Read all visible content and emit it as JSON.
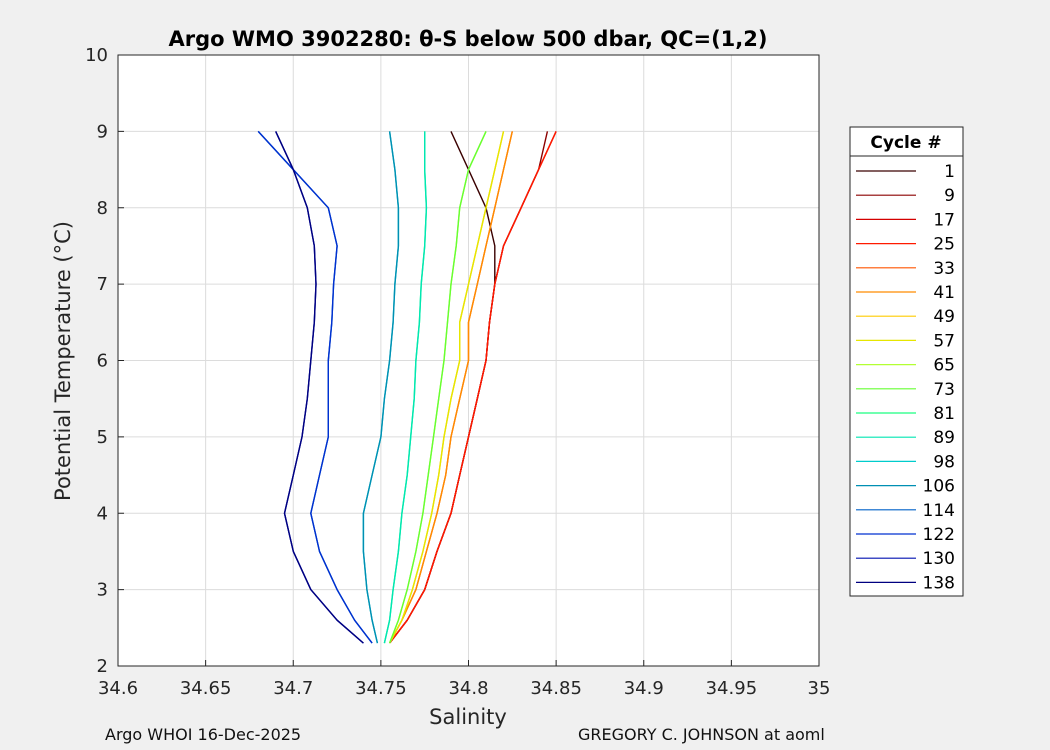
{
  "chart_data": {
    "type": "line",
    "title": "Argo WMO 3902280: θ-S below 500 dbar,  QC=(1,2)",
    "xlabel": "Salinity",
    "ylabel": "Potential Temperature (°C)",
    "xlim": [
      34.6,
      35.0
    ],
    "ylim": [
      2,
      10
    ],
    "xticks": [
      "34.6",
      "34.65",
      "34.7",
      "34.75",
      "34.8",
      "34.85",
      "34.9",
      "34.95",
      "35"
    ],
    "yticks": [
      "2",
      "3",
      "4",
      "5",
      "6",
      "7",
      "8",
      "9",
      "10"
    ],
    "grid": true,
    "legend_title": "Cycle #",
    "legend_position": "right-outside",
    "cycles": [
      1,
      9,
      17,
      25,
      33,
      41,
      49,
      57,
      65,
      73,
      81,
      89,
      98,
      106,
      114,
      122,
      130,
      138
    ],
    "colors": [
      "#3a0000",
      "#8b0000",
      "#d40000",
      "#ff1a00",
      "#ff5500",
      "#ff8c00",
      "#ffcc00",
      "#e6e600",
      "#b3ff33",
      "#66ff33",
      "#1aff80",
      "#00e6b3",
      "#00cccc",
      "#008fb3",
      "#0060c8",
      "#0030d0",
      "#0010b0",
      "#000080"
    ],
    "theta": [
      2.3,
      2.6,
      3.0,
      3.5,
      4.0,
      4.5,
      5.0,
      5.5,
      6.0,
      6.5,
      7.0,
      7.5,
      8.0,
      8.5,
      9.0
    ],
    "series": [
      {
        "name": "1",
        "salinity": [
          34.755,
          34.765,
          34.775,
          34.782,
          34.79,
          34.795,
          34.8,
          34.805,
          34.81,
          34.812,
          34.815,
          34.815,
          34.81,
          34.8,
          34.79
        ]
      },
      {
        "name": "9",
        "salinity": [
          34.755,
          34.765,
          34.775,
          34.782,
          34.79,
          34.795,
          34.8,
          34.805,
          34.81,
          34.812,
          34.815,
          34.82,
          34.83,
          34.84,
          34.845
        ]
      },
      {
        "name": "17",
        "salinity": [
          34.755,
          34.765,
          34.775,
          34.782,
          34.79,
          34.795,
          34.8,
          34.805,
          34.81,
          34.812,
          34.815,
          34.82,
          34.83,
          34.84,
          34.85
        ]
      },
      {
        "name": "25",
        "salinity": [
          34.755,
          34.765,
          34.775,
          34.782,
          34.79,
          34.795,
          34.8,
          34.805,
          34.81,
          34.812,
          34.815,
          34.82,
          34.83,
          34.84,
          34.85
        ]
      },
      {
        "name": "33",
        "salinity": [
          34.755,
          34.762,
          34.77,
          34.776,
          34.782,
          34.787,
          34.79,
          34.795,
          34.8,
          34.8,
          34.805,
          34.81,
          34.815,
          34.82,
          34.825
        ]
      },
      {
        "name": "41",
        "salinity": [
          34.755,
          34.762,
          34.77,
          34.776,
          34.782,
          34.787,
          34.79,
          34.795,
          34.8,
          34.8,
          34.805,
          34.81,
          34.815,
          34.82,
          34.825
        ]
      },
      {
        "name": "49",
        "salinity": [
          34.755,
          34.762,
          34.768,
          34.774,
          34.779,
          34.783,
          34.786,
          34.79,
          34.795,
          34.795,
          34.8,
          34.805,
          34.81,
          34.815,
          34.82
        ]
      },
      {
        "name": "57",
        "salinity": [
          34.755,
          34.762,
          34.768,
          34.774,
          34.779,
          34.783,
          34.786,
          34.79,
          34.795,
          34.795,
          34.8,
          34.805,
          34.81,
          34.815,
          34.82
        ]
      },
      {
        "name": "65",
        "salinity": [
          34.755,
          34.76,
          34.765,
          34.77,
          34.774,
          34.777,
          34.78,
          34.783,
          34.786,
          34.788,
          34.79,
          34.793,
          34.795,
          34.8,
          34.81
        ]
      },
      {
        "name": "73",
        "salinity": [
          34.755,
          34.76,
          34.765,
          34.77,
          34.774,
          34.777,
          34.78,
          34.783,
          34.786,
          34.788,
          34.79,
          34.793,
          34.795,
          34.8,
          34.81
        ]
      },
      {
        "name": "81",
        "salinity": [
          34.752,
          34.755,
          34.757,
          34.76,
          34.762,
          34.765,
          34.767,
          34.769,
          34.77,
          34.772,
          34.773,
          34.775,
          34.776,
          34.775,
          34.775
        ]
      },
      {
        "name": "89",
        "salinity": [
          34.752,
          34.755,
          34.757,
          34.76,
          34.762,
          34.765,
          34.767,
          34.769,
          34.77,
          34.772,
          34.773,
          34.775,
          34.776,
          34.775,
          34.775
        ]
      },
      {
        "name": "98",
        "salinity": [
          34.748,
          34.745,
          34.742,
          34.74,
          34.74,
          34.745,
          34.75,
          34.752,
          34.755,
          34.757,
          34.758,
          34.76,
          34.76,
          34.758,
          34.755
        ]
      },
      {
        "name": "106",
        "salinity": [
          34.748,
          34.745,
          34.742,
          34.74,
          34.74,
          34.745,
          34.75,
          34.752,
          34.755,
          34.757,
          34.758,
          34.76,
          34.76,
          34.758,
          34.755
        ]
      },
      {
        "name": "114",
        "salinity": [
          34.745,
          34.735,
          34.725,
          34.715,
          34.71,
          34.715,
          34.72,
          34.72,
          34.72,
          34.722,
          34.723,
          34.725,
          34.72,
          34.7,
          34.68
        ]
      },
      {
        "name": "122",
        "salinity": [
          34.745,
          34.735,
          34.725,
          34.715,
          34.71,
          34.715,
          34.72,
          34.72,
          34.72,
          34.722,
          34.723,
          34.725,
          34.72,
          34.7,
          34.68
        ]
      },
      {
        "name": "130",
        "salinity": [
          34.74,
          34.725,
          34.71,
          34.7,
          34.695,
          34.7,
          34.705,
          34.708,
          34.71,
          34.712,
          34.713,
          34.712,
          34.708,
          34.7,
          34.69
        ]
      },
      {
        "name": "138",
        "salinity": [
          34.74,
          34.725,
          34.71,
          34.7,
          34.695,
          34.7,
          34.705,
          34.708,
          34.71,
          34.712,
          34.713,
          34.712,
          34.708,
          34.7,
          34.69
        ]
      }
    ]
  },
  "footer": {
    "left": "Argo WHOI 16-Dec-2025",
    "right": "GREGORY C. JOHNSON at aoml"
  }
}
